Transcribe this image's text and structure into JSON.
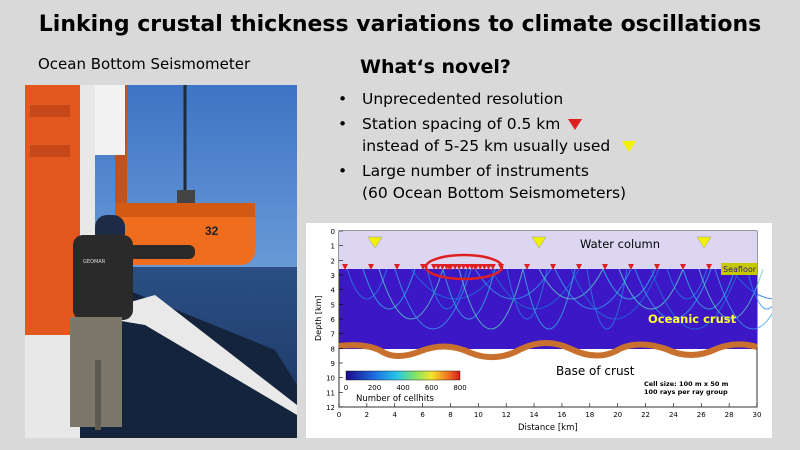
{
  "title": "Linking crustal thickness variations to climate oscillations",
  "photo": {
    "caption": "Ocean Bottom Seismometer",
    "box_number": "32",
    "shirt_text": "GEOMAR"
  },
  "novel": {
    "heading": "What‘s novel?",
    "bullets": [
      {
        "line1": "Unprecedented resolution",
        "line2": ""
      },
      {
        "line1": "Station spacing of 0.5 km",
        "line2": "instead of 5-25 km usually used"
      },
      {
        "line1": "Large number of instruments",
        "line2": "(60 Ocean Bottom Seismometers)"
      }
    ],
    "bullet_glyph": "•"
  },
  "figure": {
    "ylabel": "Depth [km]",
    "xlabel": "Distance [km]",
    "y_ticks": [
      "0",
      "1",
      "2",
      "3",
      "4",
      "5",
      "6",
      "7",
      "8",
      "9",
      "10",
      "11",
      "12"
    ],
    "x_ticks": [
      "0",
      "2",
      "4",
      "6",
      "8",
      "10",
      "12",
      "14",
      "16",
      "18",
      "20",
      "22",
      "24",
      "26",
      "28",
      "30"
    ],
    "labels": {
      "water_column": "Water column",
      "seafloor": "Seafloor",
      "oceanic_crust": "Oceanic crust",
      "base_of_crust": "Base of crust",
      "cell_size": "Cell size: 100 m x 50 m",
      "rays": "100 rays per ray group"
    },
    "colorbar": {
      "ticks": [
        "0",
        "200",
        "400",
        "600",
        "800"
      ],
      "label": "Number of cellhits"
    },
    "colors": {
      "water": "#ddd6f2",
      "crust": "#3b17c6",
      "base": "#c8702e",
      "station_red": "#e02020",
      "station_yellow": "#f2f200",
      "crust_label": "#ffff33"
    }
  }
}
